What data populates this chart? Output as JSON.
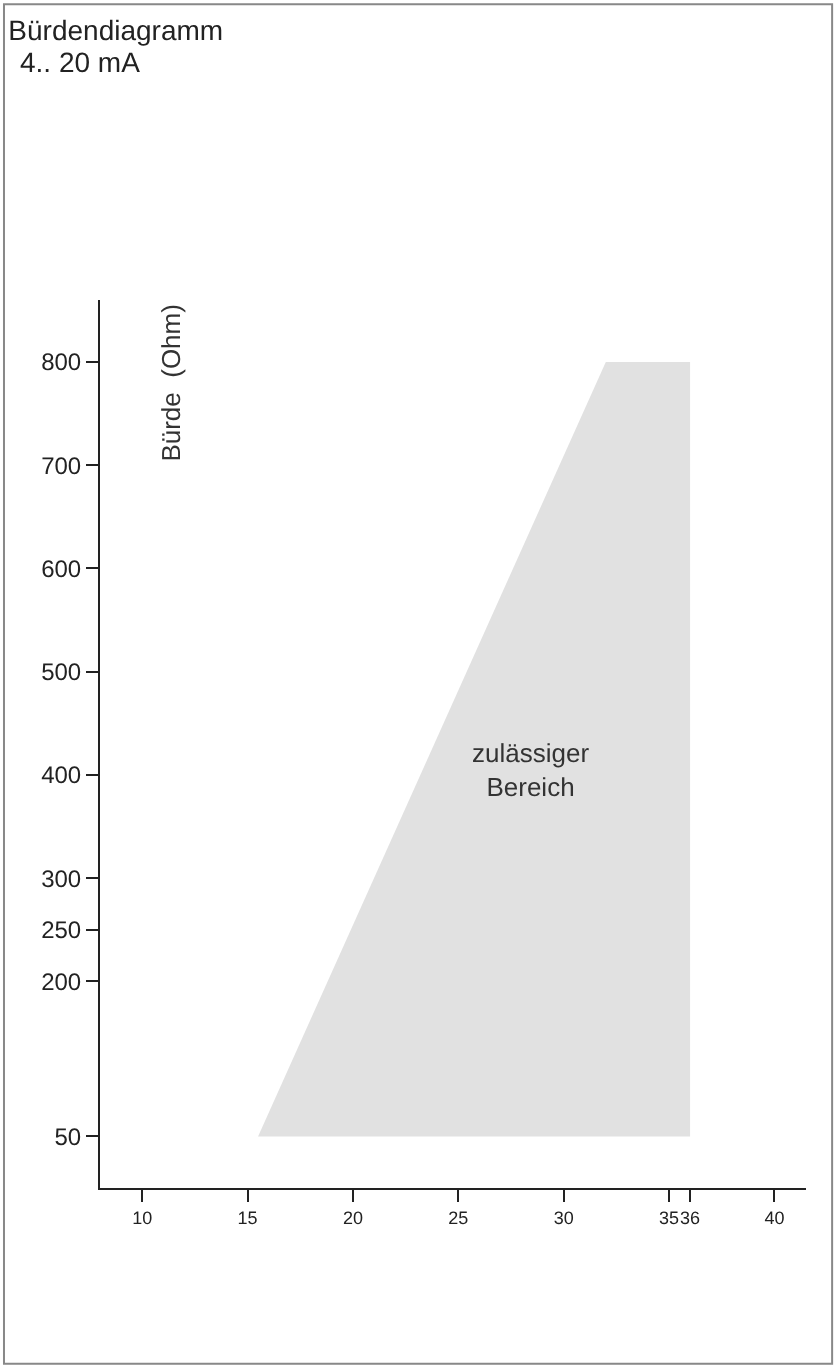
{
  "chart_data": {
    "type": "area",
    "title": "Bürdendiagramm",
    "subtitle": "4.. 20 mA",
    "ylabel": "Bürde  (Ohm)",
    "series": [
      {
        "x": [
          15.5,
          32,
          36,
          36
        ],
        "values": [
          50,
          800,
          800,
          50
        ],
        "color": "#e1e1e1"
      }
    ],
    "xlim": [
      8,
      41.5
    ],
    "xticks": [
      10,
      15,
      20,
      25,
      30,
      35,
      36,
      40
    ],
    "ylim": [
      0,
      860
    ],
    "yticks": [
      50,
      200,
      250,
      300,
      400,
      500,
      600,
      700,
      800
    ],
    "annotations": [
      "zulässiger Bereich"
    ]
  }
}
